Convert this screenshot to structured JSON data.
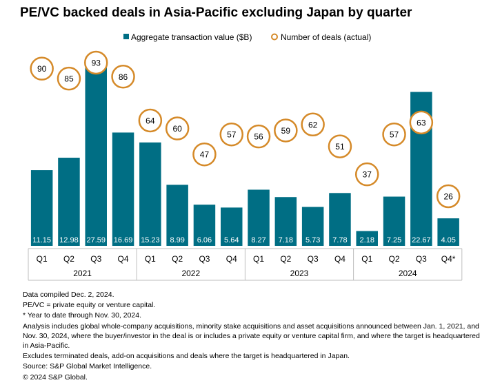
{
  "title": "PE/VC backed deals in Asia-Pacific excluding Japan by quarter",
  "colors": {
    "bar": "#006e84",
    "circle": "#d58a29",
    "axis": "#bdbdbd"
  },
  "chart_data": {
    "type": "bar",
    "title": "PE/VC backed deals in Asia-Pacific excluding Japan by quarter",
    "legend_position": "top",
    "categories": [
      "Q1",
      "Q2",
      "Q3",
      "Q4",
      "Q1",
      "Q2",
      "Q3",
      "Q4",
      "Q1",
      "Q2",
      "Q3",
      "Q4",
      "Q1",
      "Q2",
      "Q3",
      "Q4*"
    ],
    "groups": [
      {
        "label": "2021",
        "count": 4
      },
      {
        "label": "2022",
        "count": 4
      },
      {
        "label": "2023",
        "count": 4
      },
      {
        "label": "2024",
        "count": 4
      }
    ],
    "series": [
      {
        "name": "Aggregate transaction value ($B)",
        "type": "bar",
        "values": [
          11.15,
          12.98,
          27.59,
          16.69,
          15.23,
          8.99,
          6.06,
          5.64,
          8.27,
          7.18,
          5.73,
          7.78,
          2.18,
          7.25,
          22.67,
          4.05
        ]
      },
      {
        "name": "Number of deals (actual)",
        "type": "marker",
        "values": [
          90,
          85,
          93,
          86,
          64,
          60,
          47,
          57,
          56,
          59,
          62,
          51,
          37,
          57,
          63,
          26
        ]
      }
    ]
  },
  "notes": [
    "Data compiled Dec. 2, 2024.",
    "PE/VC = private equity or venture capital.",
    "* Year to date through Nov. 30, 2024.",
    "Analysis includes global whole-company acquisitions, minority stake acquisitions and asset acquisitions announced between Jan. 1, 2021, and Nov. 30, 2024, where the buyer/investor in the deal is or includes a private equity or venture capital firm, and where the target is headquartered in Asia-Pacific.",
    "Excludes terminated deals, add-on acquisitions and deals where the target is headquartered in Japan.",
    "Source: S&P Global Market Intelligence.",
    "© 2024 S&P Global."
  ]
}
